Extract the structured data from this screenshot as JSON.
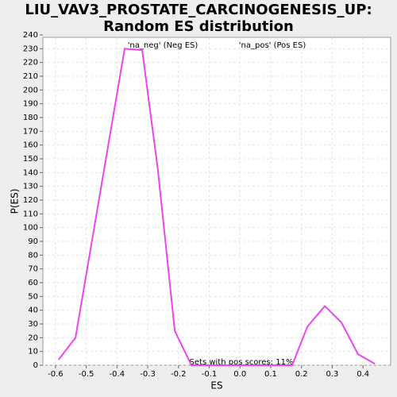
{
  "chart_data": {
    "type": "line",
    "title": "LIU_VAV3_PROSTATE_CARCINOGENESIS_UP: Random ES distribution",
    "x_label": "ES",
    "y_label": "P(ES)",
    "annotations": [
      "'na_neg' (Neg ES)",
      "'na_pos' (Pos ES)",
      "Sets with pos scores: 11%"
    ],
    "annotation_colors": [
      "#3333cc",
      "#cc3333",
      "#333333"
    ],
    "x": [
      -0.59,
      -0.535,
      -0.375,
      -0.318,
      -0.267,
      -0.212,
      -0.158,
      -0.104,
      -0.05,
      0.005,
      0.06,
      0.115,
      0.17,
      0.219,
      0.276,
      0.33,
      0.384,
      0.439
    ],
    "series": [
      {
        "name": "P(ES)",
        "color": "#ee44ee",
        "values": [
          4,
          20,
          230,
          229,
          142,
          25,
          0,
          0,
          0,
          0,
          0,
          0,
          0,
          28,
          43,
          31,
          8,
          1
        ]
      }
    ],
    "xlim": [
      -0.641,
      0.49
    ],
    "xticks": [
      -0.6,
      -0.5,
      -0.4,
      -0.3,
      -0.2,
      -0.1,
      {
        "value": 0,
        "label": "0.0"
      },
      0.1,
      0.2,
      0.3,
      0.4
    ],
    "ylim": [
      0,
      240
    ],
    "yticks": [
      0,
      10,
      20,
      30,
      40,
      50,
      60,
      70,
      80,
      90,
      100,
      110,
      120,
      130,
      140,
      150,
      160,
      170,
      180,
      190,
      200,
      210,
      220,
      230,
      240
    ],
    "grid": true
  }
}
